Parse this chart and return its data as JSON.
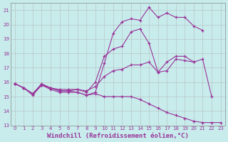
{
  "background_color": "#c8ecec",
  "grid_color": "#b0b0b0",
  "line_color": "#993399",
  "marker": "+",
  "xlabel": "Windchill (Refroidissement éolien,°C)",
  "xlabel_fontsize": 6.5,
  "xlim": [
    -0.5,
    23.5
  ],
  "ylim": [
    13,
    21.5
  ],
  "yticks": [
    13,
    14,
    15,
    16,
    17,
    18,
    19,
    20,
    21
  ],
  "xticks": [
    0,
    1,
    2,
    3,
    4,
    5,
    6,
    7,
    8,
    9,
    10,
    11,
    12,
    13,
    14,
    15,
    16,
    17,
    18,
    19,
    20,
    21,
    22,
    23
  ],
  "lines": [
    {
      "x": [
        0,
        1,
        2,
        3,
        4,
        5,
        6,
        7,
        8,
        9,
        10,
        11,
        12,
        13,
        14,
        15,
        16,
        17,
        18,
        19,
        20,
        21,
        22,
        23
      ],
      "y": [
        15.9,
        15.6,
        15.1,
        15.8,
        15.5,
        15.3,
        15.3,
        15.3,
        15.1,
        15.2,
        15.0,
        15.0,
        15.0,
        15.0,
        14.8,
        14.5,
        14.2,
        13.9,
        13.7,
        13.5,
        13.3,
        13.2,
        13.2,
        13.2
      ]
    },
    {
      "x": [
        0,
        1,
        2,
        3,
        4,
        5,
        6,
        7,
        8,
        9,
        10,
        11,
        12,
        13,
        14,
        15,
        16,
        17,
        18,
        19,
        20,
        21
      ],
      "y": [
        15.9,
        15.6,
        15.2,
        15.8,
        15.6,
        15.4,
        15.4,
        15.3,
        15.1,
        15.3,
        17.3,
        19.4,
        20.2,
        20.4,
        20.3,
        21.2,
        20.5,
        20.8,
        20.5,
        20.5,
        19.9,
        19.6
      ]
    },
    {
      "x": [
        0,
        1,
        2,
        3,
        4,
        5,
        6,
        7,
        8,
        9,
        10,
        11,
        12,
        13,
        14,
        15,
        16,
        17,
        18,
        19,
        20,
        21,
        22
      ],
      "y": [
        15.9,
        15.6,
        15.2,
        15.8,
        15.6,
        15.4,
        15.4,
        15.5,
        15.3,
        16.0,
        17.8,
        18.3,
        18.5,
        19.5,
        19.7,
        18.7,
        16.7,
        16.8,
        17.6,
        17.5,
        17.4,
        17.6,
        15.0
      ]
    },
    {
      "x": [
        0,
        1,
        2,
        3,
        4,
        5,
        6,
        7,
        8,
        9,
        10,
        11,
        12,
        13,
        14,
        15,
        16,
        17,
        18,
        19,
        20
      ],
      "y": [
        15.9,
        15.6,
        15.2,
        15.9,
        15.6,
        15.5,
        15.5,
        15.5,
        15.4,
        15.7,
        16.4,
        16.8,
        16.9,
        17.2,
        17.2,
        17.4,
        16.7,
        17.4,
        17.8,
        17.8,
        17.4
      ]
    }
  ]
}
